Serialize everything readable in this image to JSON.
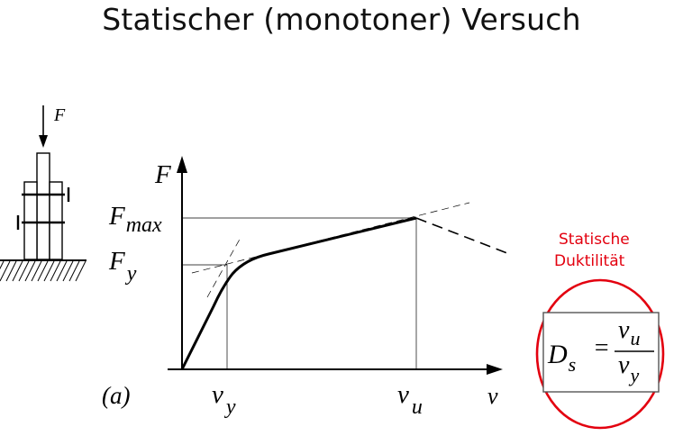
{
  "title": "Statischer (monotoner) Versuch",
  "specimen": {
    "force_label": "F"
  },
  "diagram": {
    "y_axis_label": "F",
    "x_axis_label": "v",
    "f_max_label": {
      "main": "F",
      "sub": "max"
    },
    "f_y_label": {
      "main": "F",
      "sub": "y"
    },
    "v_y_label": {
      "main": "v",
      "sub": "y"
    },
    "v_u_label": {
      "main": "v",
      "sub": "u"
    },
    "panel_label": "(a)"
  },
  "annotation": {
    "line1": "Statische",
    "line2": "Duktilität"
  },
  "formula": {
    "lhs_main": "D",
    "lhs_sub": "s",
    "equals": "=",
    "num_main": "v",
    "num_sub": "u",
    "den_main": "v",
    "den_sub": "y"
  },
  "colors": {
    "accent": "#e3000f",
    "ink": "#000000"
  }
}
